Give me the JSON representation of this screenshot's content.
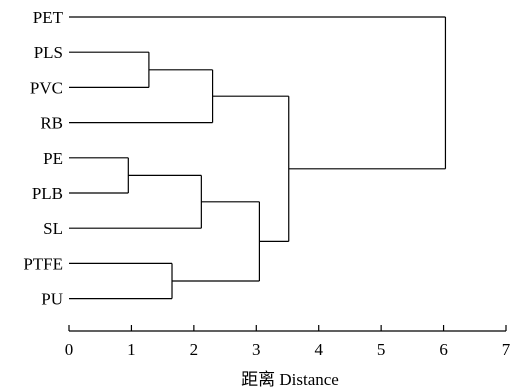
{
  "chart_data": {
    "type": "dendrogram",
    "xlabel": "距离 Distance",
    "xlim": [
      0,
      7
    ],
    "xticks": [
      0,
      1,
      2,
      3,
      4,
      5,
      6,
      7
    ],
    "leaves": [
      "PET",
      "PLS",
      "PVC",
      "RB",
      "PE",
      "PLB",
      "SL",
      "PTFE",
      "PU"
    ],
    "merges": [
      {
        "id": "c1",
        "children": [
          "PLS",
          "PVC"
        ],
        "distance": 1.28
      },
      {
        "id": "c2",
        "children": [
          "c1",
          "RB"
        ],
        "distance": 2.3
      },
      {
        "id": "c3",
        "children": [
          "PE",
          "PLB"
        ],
        "distance": 0.95
      },
      {
        "id": "c4",
        "children": [
          "c3",
          "SL"
        ],
        "distance": 2.12
      },
      {
        "id": "c5",
        "children": [
          "PTFE",
          "PU"
        ],
        "distance": 1.65
      },
      {
        "id": "c6",
        "children": [
          "c4",
          "c5"
        ],
        "distance": 3.05
      },
      {
        "id": "c7",
        "children": [
          "c2",
          "c6"
        ],
        "distance": 3.52
      },
      {
        "id": "c8",
        "children": [
          "PET",
          "c7"
        ],
        "distance": 6.03
      }
    ],
    "grid": false,
    "legend": "none"
  }
}
